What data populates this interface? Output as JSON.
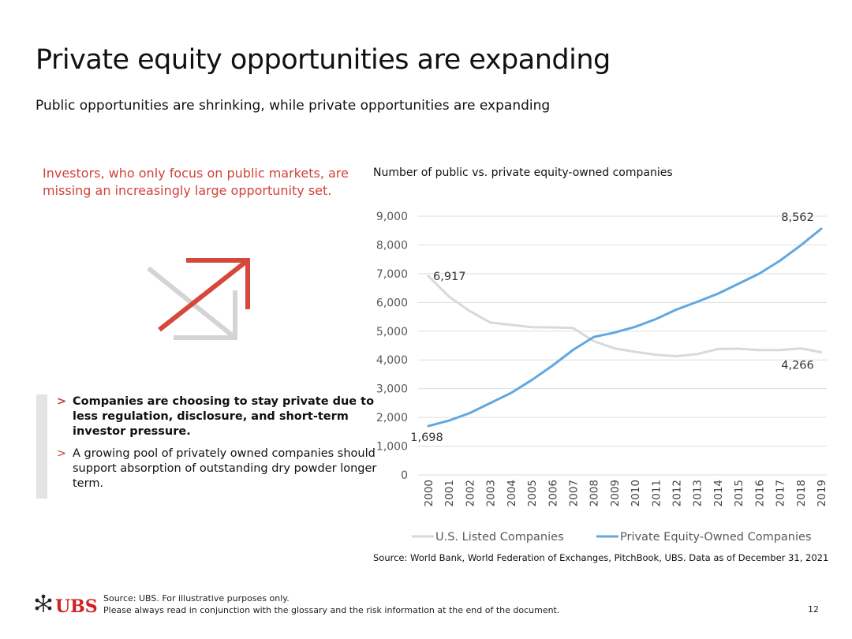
{
  "title": "Private equity opportunities are expanding",
  "subtitle": "Public opportunities are shrinking, while private opportunities are expanding",
  "callout": "Investors, who only focus on public markets, are missing an increasingly large opportunity set.",
  "bullets": [
    "Companies are choosing to stay private due to less regulation, disclosure, and short-term investor pressure.",
    "A growing pool of privately owned companies should support absorption of outstanding dry powder longer term."
  ],
  "bullet_marker": ">",
  "chart_title": "Number of public vs. private equity-owned companies",
  "chart_data": {
    "type": "line",
    "x": [
      "2000",
      "2001",
      "2002",
      "2003",
      "2004",
      "2005",
      "2006",
      "2007",
      "2008",
      "2009",
      "2010",
      "2011",
      "2012",
      "2013",
      "2014",
      "2015",
      "2016",
      "2017",
      "2018",
      "2019"
    ],
    "series": [
      {
        "name": "U.S. Listed Companies",
        "color": "#d9d9d9",
        "values": [
          6917,
          6200,
          5700,
          5300,
          5220,
          5140,
          5130,
          5110,
          4650,
          4400,
          4280,
          4180,
          4130,
          4200,
          4380,
          4390,
          4340,
          4340,
          4400,
          4266
        ]
      },
      {
        "name": "Private Equity-Owned Companies",
        "color": "#62a8e0",
        "values": [
          1698,
          1890,
          2150,
          2500,
          2850,
          3300,
          3800,
          4350,
          4800,
          4950,
          5150,
          5420,
          5750,
          6020,
          6300,
          6650,
          7000,
          7450,
          7980,
          8562
        ]
      }
    ],
    "yticks": [
      "0",
      "1,000",
      "2,000",
      "3,000",
      "4,000",
      "5,000",
      "6,000",
      "7,000",
      "8,000",
      "9,000"
    ],
    "ylim": [
      0,
      9000
    ],
    "annotations": [
      {
        "series": 0,
        "index": 0,
        "text": "6,917"
      },
      {
        "series": 1,
        "index": 0,
        "text": "1,698"
      },
      {
        "series": 1,
        "index": 19,
        "text": "8,562"
      },
      {
        "series": 0,
        "index": 19,
        "text": "4,266"
      }
    ],
    "grid": true,
    "legend": "bottom"
  },
  "source": "Source: World Bank, World Federation of Exchanges, PitchBook, UBS. Data as of December 31, 2021",
  "footer": {
    "logo_text": "UBS",
    "line1": "Source: UBS. For illustrative purposes only.",
    "line2": "Please always read in conjunction with the glossary and the risk information at the end of the document.",
    "page": "12"
  }
}
